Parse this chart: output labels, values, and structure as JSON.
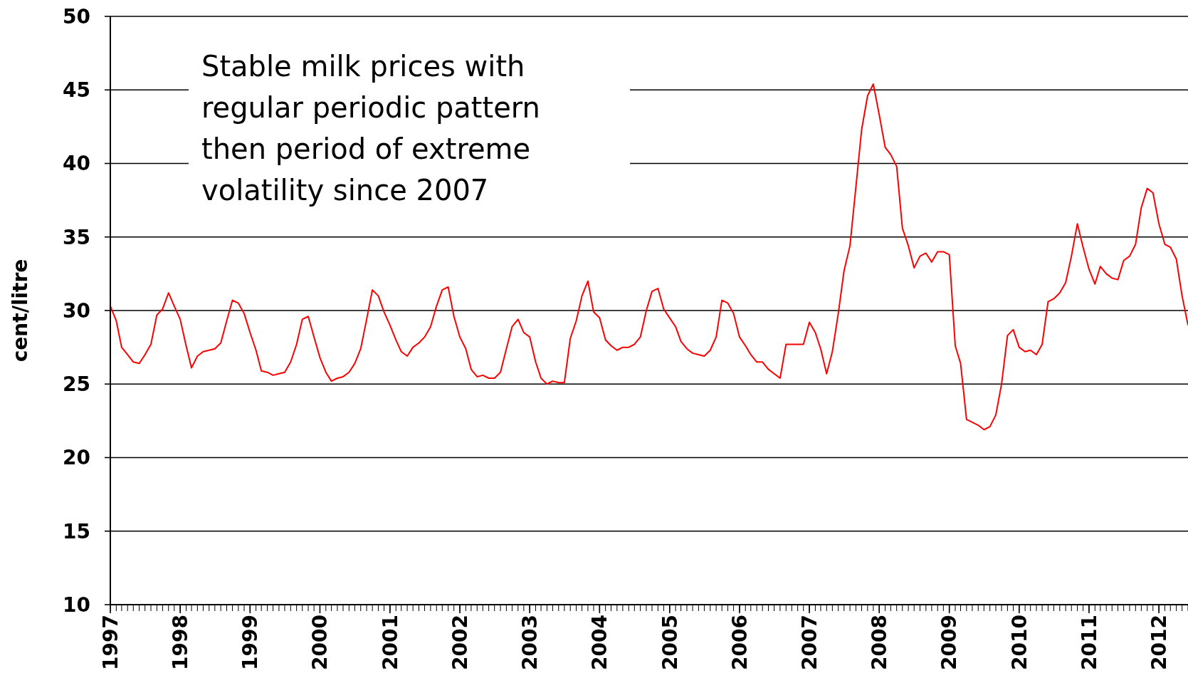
{
  "chart_data": {
    "type": "line",
    "ylabel": "cent/litre",
    "annotations": [
      "Stable milk prices with regular periodic pattern then period of extreme volatility since 2007"
    ],
    "xlim": [
      "1997-01",
      "2012-06"
    ],
    "xticks": [
      {
        "value": "1997-01",
        "label": "1997"
      },
      {
        "value": "1998-01",
        "label": "1998"
      },
      {
        "value": "1999-01",
        "label": "1999"
      },
      {
        "value": "2000-01",
        "label": "2000"
      },
      {
        "value": "2001-01",
        "label": "2001"
      },
      {
        "value": "2002-01",
        "label": "2002"
      },
      {
        "value": "2003-01",
        "label": "2003"
      },
      {
        "value": "2004-01",
        "label": "2004"
      },
      {
        "value": "2005-01",
        "label": "2005"
      },
      {
        "value": "2006-01",
        "label": "2006"
      },
      {
        "value": "2007-01",
        "label": "2007"
      },
      {
        "value": "2008-01",
        "label": "2008"
      },
      {
        "value": "2009-01",
        "label": "2009"
      },
      {
        "value": "2010-01",
        "label": "2010"
      },
      {
        "value": "2011-01",
        "label": "2011"
      },
      {
        "value": "2012-01",
        "label": "2012"
      }
    ],
    "ylim": [
      10,
      50
    ],
    "yticks": [
      10,
      15,
      20,
      25,
      30,
      35,
      40,
      45,
      50
    ],
    "grid": "y",
    "series": [
      {
        "color": "#ff0000",
        "x": [
          "1997-01",
          "1997-02",
          "1997-03",
          "1997-04",
          "1997-05",
          "1997-06",
          "1997-07",
          "1997-08",
          "1997-09",
          "1997-10",
          "1997-11",
          "1997-12",
          "1998-01",
          "1998-02",
          "1998-03",
          "1998-04",
          "1998-05",
          "1998-06",
          "1998-07",
          "1998-08",
          "1998-09",
          "1998-10",
          "1998-11",
          "1998-12",
          "1999-01",
          "1999-02",
          "1999-03",
          "1999-04",
          "1999-05",
          "1999-06",
          "1999-07",
          "1999-08",
          "1999-09",
          "1999-10",
          "1999-11",
          "1999-12",
          "2000-01",
          "2000-02",
          "2000-03",
          "2000-04",
          "2000-05",
          "2000-06",
          "2000-07",
          "2000-08",
          "2000-09",
          "2000-10",
          "2000-11",
          "2000-12",
          "2001-01",
          "2001-02",
          "2001-03",
          "2001-04",
          "2001-05",
          "2001-06",
          "2001-07",
          "2001-08",
          "2001-09",
          "2001-10",
          "2001-11",
          "2001-12",
          "2002-01",
          "2002-02",
          "2002-03",
          "2002-04",
          "2002-05",
          "2002-06",
          "2002-07",
          "2002-08",
          "2002-09",
          "2002-10",
          "2002-11",
          "2002-12",
          "2003-01",
          "2003-02",
          "2003-03",
          "2003-04",
          "2003-05",
          "2003-06",
          "2003-07",
          "2003-08",
          "2003-09",
          "2003-10",
          "2003-11",
          "2003-12",
          "2004-01",
          "2004-02",
          "2004-03",
          "2004-04",
          "2004-05",
          "2004-06",
          "2004-07",
          "2004-08",
          "2004-09",
          "2004-10",
          "2004-11",
          "2004-12",
          "2005-01",
          "2005-02",
          "2005-03",
          "2005-04",
          "2005-05",
          "2005-06",
          "2005-07",
          "2005-08",
          "2005-09",
          "2005-10",
          "2005-11",
          "2005-12",
          "2006-01",
          "2006-02",
          "2006-03",
          "2006-04",
          "2006-05",
          "2006-06",
          "2006-07",
          "2006-08",
          "2006-09",
          "2006-10",
          "2006-11",
          "2006-12",
          "2007-01",
          "2007-02",
          "2007-03",
          "2007-04",
          "2007-05",
          "2007-06",
          "2007-07",
          "2007-08",
          "2007-09",
          "2007-10",
          "2007-11",
          "2007-12",
          "2008-01",
          "2008-02",
          "2008-03",
          "2008-04",
          "2008-05",
          "2008-06",
          "2008-07",
          "2008-08",
          "2008-09",
          "2008-10",
          "2008-11",
          "2008-12",
          "2009-01",
          "2009-02",
          "2009-03",
          "2009-04",
          "2009-05",
          "2009-06",
          "2009-07",
          "2009-08",
          "2009-09",
          "2009-10",
          "2009-11",
          "2009-12",
          "2010-01",
          "2010-02",
          "2010-03",
          "2010-04",
          "2010-05",
          "2010-06",
          "2010-07",
          "2010-08",
          "2010-09",
          "2010-10",
          "2010-11",
          "2010-12",
          "2011-01",
          "2011-02",
          "2011-03",
          "2011-04",
          "2011-05",
          "2011-06",
          "2011-07",
          "2011-08",
          "2011-09",
          "2011-10",
          "2011-11",
          "2011-12",
          "2012-01",
          "2012-02",
          "2012-03",
          "2012-04",
          "2012-05",
          "2012-06"
        ],
        "values": [
          30.3,
          29.3,
          27.5,
          27.0,
          26.5,
          26.4,
          27.0,
          27.7,
          29.7,
          30.1,
          31.2,
          30.3,
          29.4,
          27.6,
          26.1,
          26.9,
          27.2,
          27.3,
          27.4,
          27.8,
          29.3,
          30.7,
          30.5,
          29.8,
          28.5,
          27.3,
          25.9,
          25.8,
          25.6,
          25.7,
          25.8,
          26.5,
          27.7,
          29.4,
          29.6,
          28.2,
          26.8,
          25.8,
          25.2,
          25.4,
          25.5,
          25.8,
          26.4,
          27.4,
          29.4,
          31.4,
          31.0,
          29.9,
          29.0,
          28.0,
          27.2,
          26.9,
          27.5,
          27.8,
          28.2,
          28.9,
          30.3,
          31.4,
          31.6,
          29.6,
          28.2,
          27.4,
          26.0,
          25.5,
          25.6,
          25.4,
          25.4,
          25.8,
          27.4,
          28.9,
          29.4,
          28.5,
          28.2,
          26.5,
          25.4,
          25.0,
          25.2,
          25.1,
          25.1,
          28.1,
          29.3,
          31.0,
          32.0,
          29.9,
          29.5,
          28.0,
          27.6,
          27.3,
          27.5,
          27.5,
          27.7,
          28.2,
          30.0,
          31.3,
          31.5,
          30.1,
          29.5,
          28.9,
          27.9,
          27.4,
          27.1,
          27.0,
          26.9,
          27.3,
          28.2,
          30.7,
          30.5,
          29.8,
          28.2,
          27.6,
          27.0,
          26.5,
          26.5,
          26.0,
          25.7,
          25.4,
          27.7,
          27.7,
          27.7,
          27.7,
          29.2,
          28.5,
          27.4,
          25.7,
          27.2,
          29.8,
          32.7,
          34.4,
          38.4,
          42.3,
          44.6,
          45.4,
          43.3,
          41.1,
          40.6,
          39.8,
          35.6,
          34.4,
          32.9,
          33.7,
          33.9,
          33.3,
          34.0,
          34.0,
          33.8,
          27.6,
          26.4,
          22.6,
          22.4,
          22.2,
          21.9,
          22.1,
          22.9,
          25.0,
          28.3,
          28.7,
          27.5,
          27.2,
          27.3,
          27.0,
          27.7,
          30.6,
          30.8,
          31.2,
          31.9,
          33.7,
          35.9,
          34.3,
          32.8,
          31.8,
          33.0,
          32.5,
          32.2,
          32.1,
          33.4,
          33.7,
          34.5,
          37.0,
          38.3,
          38.0,
          35.9,
          34.5,
          34.3,
          33.5,
          31.0,
          29.0
        ]
      }
    ]
  }
}
